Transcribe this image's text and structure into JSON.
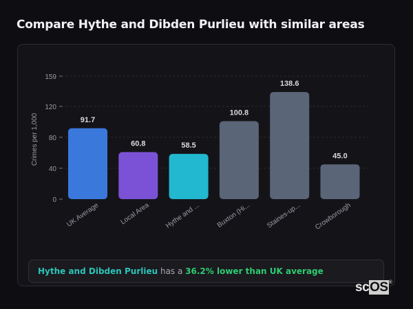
{
  "header": {
    "title": "Compare Hythe and Dibden Purlieu with similar areas"
  },
  "chart_data": {
    "type": "bar",
    "title": "",
    "xlabel": "",
    "ylabel": "Crimes per 1,000",
    "ylim": [
      0,
      159
    ],
    "yticks": [
      0,
      40,
      80,
      120,
      159
    ],
    "grid": true,
    "categories": [
      "UK Average",
      "Local Area",
      "Hythe and ...",
      "Buxton (Hi...",
      "Staines-up...",
      "Crowborough"
    ],
    "values": [
      91.7,
      60.8,
      58.5,
      100.8,
      138.6,
      45.0
    ],
    "value_labels": [
      "91.7",
      "60.8",
      "58.5",
      "100.8",
      "138.6",
      "45.0"
    ],
    "colors": [
      "#3a78dc",
      "#7b52d6",
      "#22b8d0",
      "#5b6578",
      "#5b6578",
      "#5b6578"
    ]
  },
  "summary": {
    "area": "Hythe and Dibden Purlieu",
    "middle": " has a ",
    "stat": "36.2% lower than UK average"
  },
  "logo": {
    "text_sc": "sc",
    "text_os": "OS",
    "mark": "®"
  }
}
